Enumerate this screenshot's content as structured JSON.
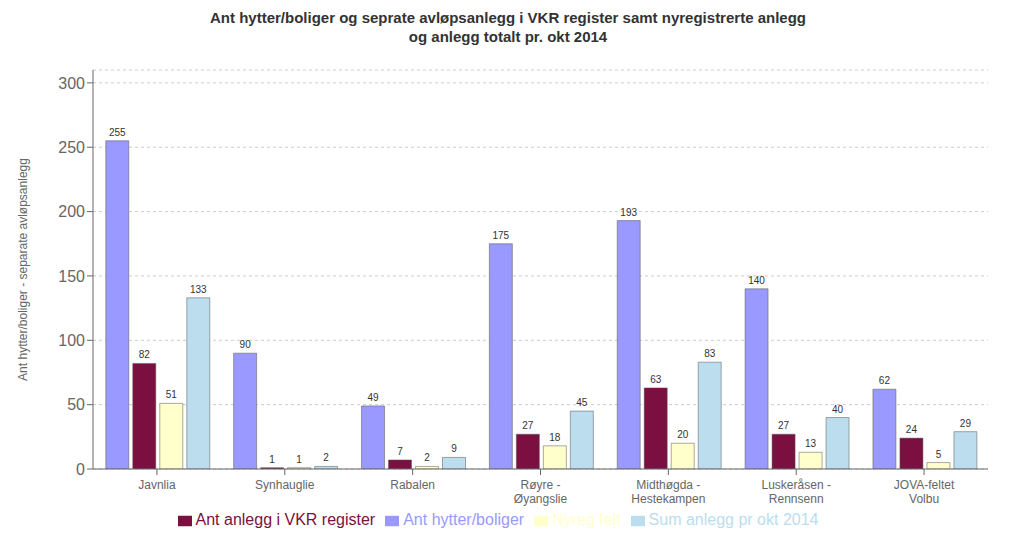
{
  "chart_data": {
    "type": "bar",
    "title": "Ant hytter/boliger og seprate avløpsanlegg i VKR register samt nyregistrerte anlegg\nog anlegg totalt pr. okt 2014",
    "ylabel": "Ant hytter/boliger - separate avløpsanlegg",
    "categories": [
      "Javnlia",
      "Synhauglie",
      "Rabalen",
      "Røyre -\nØyangslie",
      "Midthøgda -\nHestekampen",
      "Luskeråsen -\nRennsenn",
      "JOVA-feltet\nVolbu"
    ],
    "series": [
      {
        "name": "Ant hytter/boliger",
        "color": "#9999FF",
        "values": [
          255,
          90,
          49,
          175,
          193,
          140,
          62
        ]
      },
      {
        "name": "Ant anlegg i VKR register",
        "color": "#7B1040",
        "values": [
          82,
          1,
          7,
          27,
          63,
          27,
          24
        ]
      },
      {
        "name": "Nyreg felt",
        "color": "#FFFFCC",
        "values": [
          51,
          1,
          2,
          18,
          20,
          13,
          5
        ]
      },
      {
        "name": "Sum anlegg pr okt 2014",
        "color": "#BBDDEE",
        "values": [
          133,
          2,
          9,
          45,
          83,
          40,
          29
        ]
      }
    ],
    "ylim": [
      0,
      310
    ],
    "yticks": [
      0,
      50,
      100,
      150,
      200,
      250,
      300
    ],
    "grid": true,
    "legend": "bottom",
    "data_labels": true
  }
}
